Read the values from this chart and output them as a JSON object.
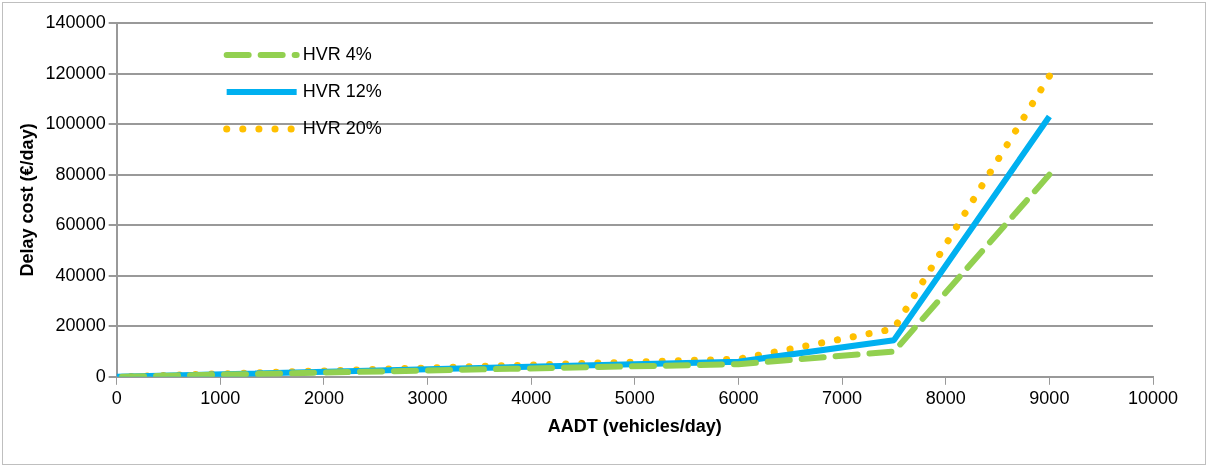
{
  "chart_data": {
    "type": "line",
    "xlabel": "AADT (vehicles/day)",
    "ylabel": "Delay cost (€/day)",
    "x": [
      0,
      6000,
      7500,
      9000
    ],
    "series": [
      {
        "name": "HVR 4%",
        "color": "#92d050",
        "values": [
          0,
          5000,
          10000,
          80000
        ],
        "line_style": "dashed"
      },
      {
        "name": "HVR 12%",
        "color": "#00b0f0",
        "values": [
          0,
          6000,
          14500,
          103000
        ],
        "line_style": "solid"
      },
      {
        "name": "HVR 20%",
        "color": "#ffc000",
        "values": [
          0,
          7000,
          19000,
          119000
        ],
        "line_style": "dotted"
      }
    ],
    "xlim": [
      0,
      10000
    ],
    "xticks": [
      0,
      1000,
      2000,
      3000,
      4000,
      5000,
      6000,
      7000,
      8000,
      9000,
      10000
    ],
    "ylim": [
      0,
      140000
    ],
    "yticks": [
      0,
      20000,
      40000,
      60000,
      80000,
      100000,
      120000,
      140000
    ],
    "grid": "y",
    "legend": "top left",
    "marker": "none"
  }
}
